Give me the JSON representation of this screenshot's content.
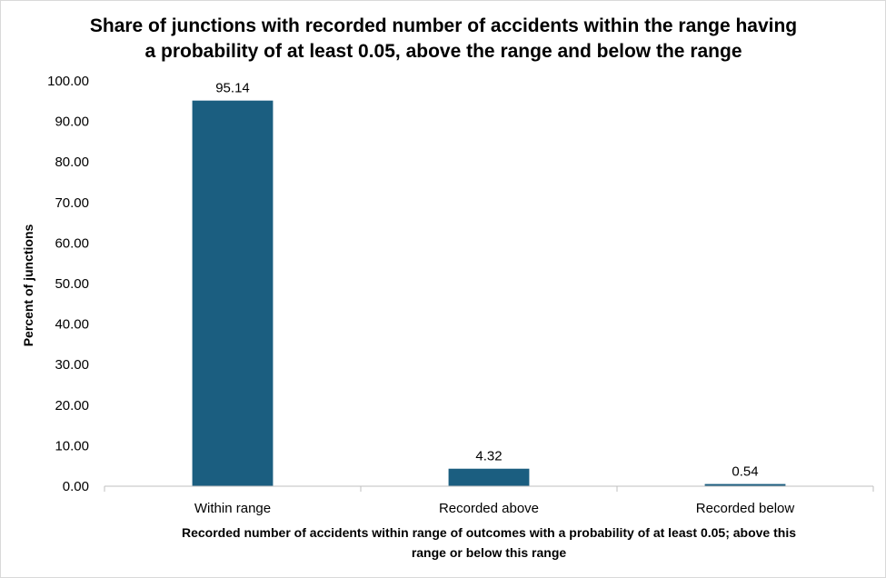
{
  "chart_data": {
    "type": "bar",
    "title_lines": [
      "Share of junctions with recorded number of accidents within the range having",
      "a probability of at least 0.05, above the range and below the range"
    ],
    "categories": [
      "Within range",
      "Recorded above",
      "Recorded below"
    ],
    "values": [
      95.14,
      4.32,
      0.54
    ],
    "value_labels": [
      "95.14",
      "4.32",
      "0.54"
    ],
    "ylabel": "Percent of junctions",
    "xlabel_lines": [
      "Recorded number of accidents within range of outcomes with a probability of at least 0.05; above this",
      "range or below this range"
    ],
    "ylim": [
      0,
      100
    ],
    "yticks": [
      0,
      10,
      20,
      30,
      40,
      50,
      60,
      70,
      80,
      90,
      100
    ],
    "ytick_labels": [
      "0.00",
      "10.00",
      "20.00",
      "30.00",
      "40.00",
      "50.00",
      "60.00",
      "70.00",
      "80.00",
      "90.00",
      "100.00"
    ],
    "gridlines": false,
    "legend": "none",
    "bar_color": "#1b5e80",
    "axis_color": "#bfbfbf"
  }
}
